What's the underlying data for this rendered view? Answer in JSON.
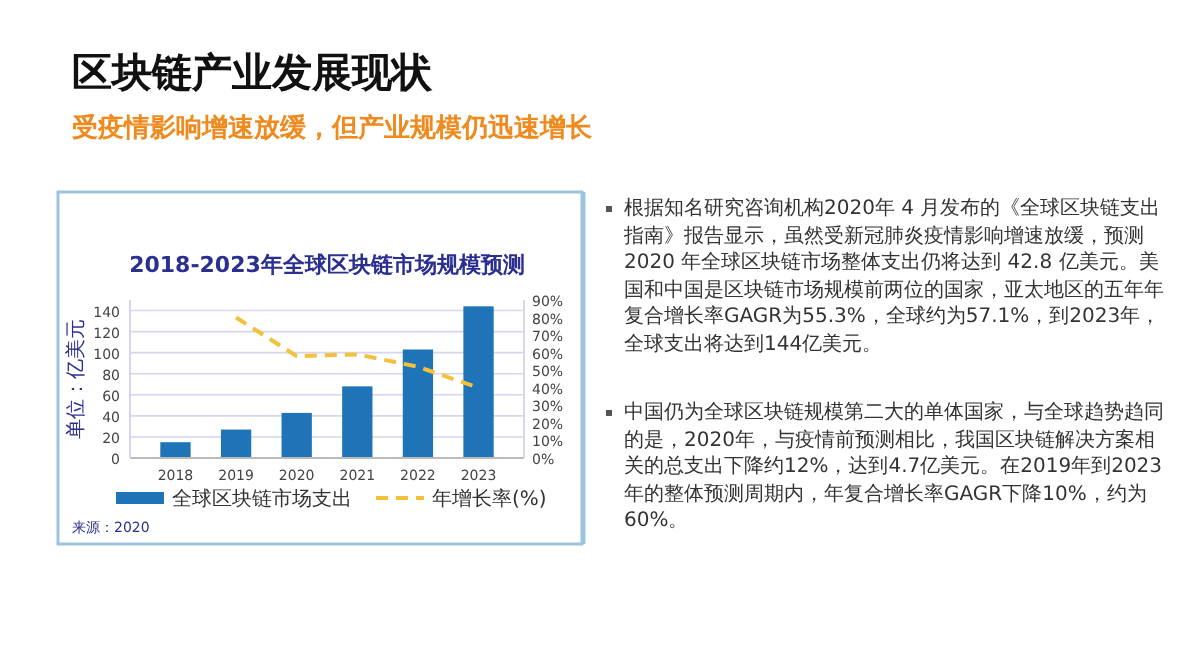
{
  "chart_data": {
    "type": "bar",
    "title": "区块链产业发展现状",
    "subtitle": "受疫情影响增速放缓，但产业规模仍迅速增长",
    "categories": [
      "2018",
      "2019",
      "2020",
      "2021",
      "2022",
      "2023"
    ],
    "series": [
      {
        "name": "全球区块链市场支出",
        "color": "#1f74b7",
        "values": [
          15,
          27,
          42.8,
          68,
          103,
          144
        ]
      },
      {
        "name": "年增长率(%)",
        "type": "line",
        "axis": "y2",
        "color": "#f3c13a",
        "line_style": "dashed",
        "values": [
          null,
          80,
          58,
          59,
          52,
          40
        ]
      }
    ],
    "ylabel": "单位：亿美元",
    "ylim": [
      0,
      150
    ],
    "yticks": [
      0,
      20,
      40,
      60,
      80,
      100,
      120,
      140
    ],
    "y2lim": [
      0,
      90
    ],
    "y2ticks": [
      {
        "value": 0,
        "label": "0%"
      },
      {
        "value": 10,
        "label": "10%"
      },
      {
        "value": 20,
        "label": "20%"
      },
      {
        "value": 30,
        "label": "30%"
      },
      {
        "value": 40,
        "label": "40%"
      },
      {
        "value": 50,
        "label": "50%"
      },
      {
        "value": 60,
        "label": "60%"
      },
      {
        "value": 70,
        "label": "70%"
      },
      {
        "value": 80,
        "label": "80%"
      },
      {
        "value": 90,
        "label": "90%"
      }
    ],
    "grid": "y",
    "legend": "bottom",
    "marker": "none",
    "annotations": [
      "2018-2023年全球区块链市场规模预测",
      "来源：2020",
      "根据知名研究咨询机构2020年 4 月发布的《全球区块链支出指南》报告显示，虽然受新冠肺炎疫情影响增速放缓，预测 2020 年全球区块链市场整体支出仍将达到 42.8 亿美元。美国和中国是区块链市场规模前两位的国家，亚太地区的五年年复合增长率GAGR为55.3%，全球约为57.1%，到2023年，全球支出将达到144亿美元。",
      "中国仍为全球区块链规模第二大的单体国家，与全球趋势趋同的是，2020年，与疫情前预测相比，我国区块链解决方案相关的总支出下降约12%，达到4.7亿美元。在2019年到2023年的整体预测周期内，年复合增长率GAGR下降10%，约为60%。"
    ]
  }
}
